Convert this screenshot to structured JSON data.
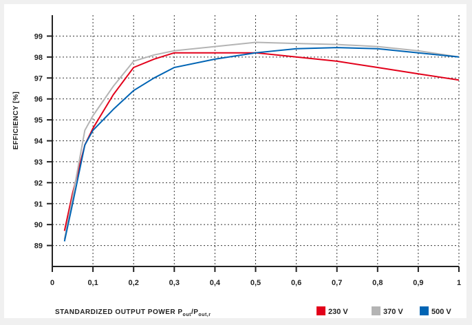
{
  "chart_data": {
    "type": "line",
    "title": "",
    "xlabel": "STANDARDIZED OUTPUT POWER P",
    "xlabel_sub1": "out",
    "xlabel_mid": "/P",
    "xlabel_sub2": "out,r",
    "ylabel": "EFFICIENCY [%]",
    "xlim": [
      0,
      1
    ],
    "ylim": [
      88,
      100
    ],
    "grid": true,
    "legend_position": "bottom-right",
    "x_ticks": [
      0,
      0.1,
      0.2,
      0.3,
      0.4,
      0.5,
      0.6,
      0.7,
      0.8,
      0.9,
      1
    ],
    "x_tick_labels": [
      "0",
      "0,1",
      "0,2",
      "0,3",
      "0,4",
      "0,5",
      "0,6",
      "0,7",
      "0,8",
      "0,9",
      "1"
    ],
    "y_ticks": [
      89,
      90,
      91,
      92,
      93,
      94,
      95,
      96,
      97,
      98,
      99
    ],
    "y_tick_labels": [
      "89",
      "90",
      "91",
      "92",
      "93",
      "94",
      "95",
      "96",
      "97",
      "98",
      "99"
    ],
    "series": [
      {
        "name": "230 V",
        "color": "#e2001a",
        "points": [
          [
            0.03,
            89.7
          ],
          [
            0.05,
            91.5
          ],
          [
            0.08,
            93.8
          ],
          [
            0.1,
            94.6
          ],
          [
            0.15,
            96.2
          ],
          [
            0.2,
            97.5
          ],
          [
            0.25,
            97.9
          ],
          [
            0.3,
            98.2
          ],
          [
            0.4,
            98.2
          ],
          [
            0.5,
            98.2
          ],
          [
            0.6,
            98.0
          ],
          [
            0.7,
            97.8
          ],
          [
            0.8,
            97.5
          ],
          [
            0.9,
            97.2
          ],
          [
            1.0,
            96.9
          ]
        ]
      },
      {
        "name": "370 V",
        "color": "#b4b4b4",
        "points": [
          [
            0.03,
            89.3
          ],
          [
            0.05,
            91.3
          ],
          [
            0.08,
            94.5
          ],
          [
            0.1,
            95.2
          ],
          [
            0.15,
            96.6
          ],
          [
            0.2,
            97.8
          ],
          [
            0.25,
            98.1
          ],
          [
            0.3,
            98.3
          ],
          [
            0.4,
            98.5
          ],
          [
            0.5,
            98.7
          ],
          [
            0.6,
            98.65
          ],
          [
            0.7,
            98.6
          ],
          [
            0.8,
            98.5
          ],
          [
            0.9,
            98.3
          ],
          [
            1.0,
            98.0
          ]
        ]
      },
      {
        "name": "500 V",
        "color": "#0064b4",
        "points": [
          [
            0.03,
            89.2
          ],
          [
            0.05,
            91.0
          ],
          [
            0.08,
            93.8
          ],
          [
            0.1,
            94.5
          ],
          [
            0.15,
            95.5
          ],
          [
            0.2,
            96.4
          ],
          [
            0.25,
            97.0
          ],
          [
            0.3,
            97.5
          ],
          [
            0.4,
            97.9
          ],
          [
            0.5,
            98.2
          ],
          [
            0.6,
            98.4
          ],
          [
            0.7,
            98.45
          ],
          [
            0.8,
            98.4
          ],
          [
            0.9,
            98.2
          ],
          [
            1.0,
            98.0
          ]
        ]
      }
    ]
  }
}
